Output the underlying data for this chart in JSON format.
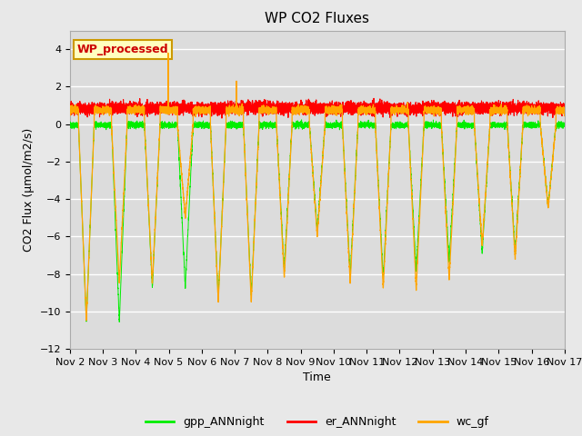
{
  "title": "WP CO2 Fluxes",
  "xlabel": "Time",
  "ylabel": "CO2 Flux (μmol/m2/s)",
  "ylim": [
    -12,
    5
  ],
  "yticks": [
    -12,
    -10,
    -8,
    -6,
    -4,
    -2,
    0,
    2,
    4
  ],
  "fig_bg_color": "#e8e8e8",
  "plot_bg_color": "#dcdcdc",
  "grid_color": "#c0c0c0",
  "line_gpp_color": "#00ee00",
  "line_er_color": "#ff0000",
  "line_wc_color": "#ffa500",
  "annotation_text": "WP_processed",
  "annotation_color": "#cc0000",
  "annotation_bg": "#ffffc0",
  "annotation_border": "#cc9900",
  "legend_labels": [
    "gpp_ANNnight",
    "er_ANNnight",
    "wc_gf"
  ],
  "n_days": 15,
  "points_per_day": 480,
  "start_day": 2,
  "spike_day": 3,
  "spike_val": 3.8,
  "spike2_day": 5,
  "spike2_val": 2.3,
  "day_depths_wc": [
    -10.5,
    -8.5,
    -8.5,
    -5.0,
    -9.5,
    -9.5,
    -8.2,
    -6.0,
    -8.5,
    -8.8,
    -8.8,
    -8.3,
    -6.5,
    -7.2,
    -4.5
  ],
  "day_depths_gpp": [
    -11.5,
    -11.5,
    -9.5,
    -9.5,
    -10.2,
    -10.0,
    -8.5,
    -6.2,
    -8.8,
    -9.0,
    -8.5,
    -8.0,
    -7.5,
    -7.5,
    -4.8
  ]
}
